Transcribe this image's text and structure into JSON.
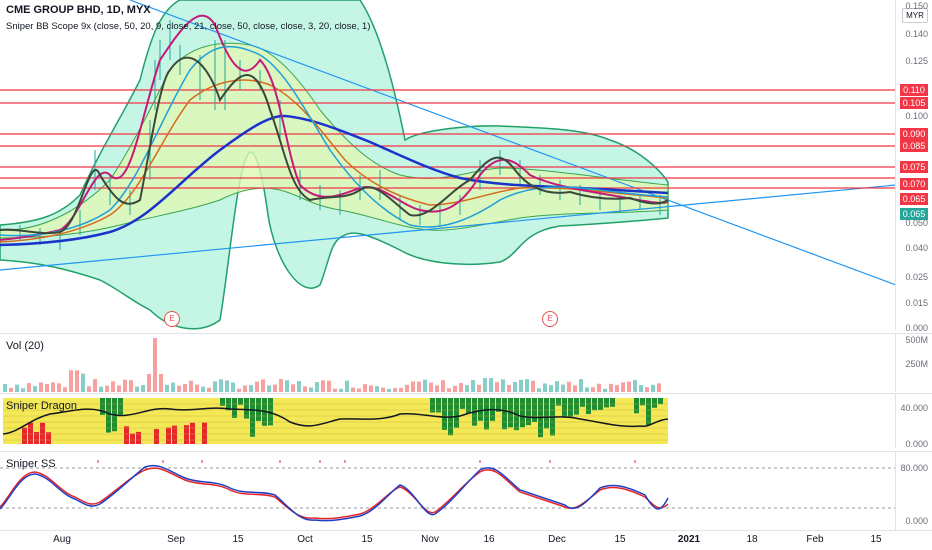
{
  "header": {
    "title": "CME GROUP BHD, 1D, MYX",
    "indicator": "Sniper BB Scope 9x (close, 50, 20, 9, close, 21, close, 50, close, close, 3, 20, close, 1)",
    "currency": "MYR"
  },
  "price_axis": {
    "labels": [
      "0.150",
      "0.140",
      "0.125",
      "0.100",
      "0.050",
      "0.040",
      "0.025",
      "0.015",
      "0.000"
    ]
  },
  "price_tags": [
    {
      "value": "0.110",
      "color": "#f23645"
    },
    {
      "value": "0.105",
      "color": "#f23645"
    },
    {
      "value": "0.090",
      "color": "#f23645"
    },
    {
      "value": "0.085",
      "color": "#f23645"
    },
    {
      "value": "0.075",
      "color": "#f23645"
    },
    {
      "value": "0.070",
      "color": "#f23645"
    },
    {
      "value": "0.065",
      "color": "#f23645"
    },
    {
      "value": "0.065",
      "color": "#26a69a"
    }
  ],
  "earnings_markers": [
    "E",
    "E"
  ],
  "volume_pane": {
    "title": "Vol (20)",
    "axis": [
      "500M",
      "250M"
    ]
  },
  "dragon_pane": {
    "title": "Sniper Dragon",
    "axis": [
      "40.000",
      "0.000"
    ]
  },
  "ss_pane": {
    "title": "Sniper SS",
    "axis": [
      "80.000",
      "0.000"
    ]
  },
  "time_axis": [
    "Aug",
    "Sep",
    "15",
    "Oct",
    "15",
    "Nov",
    "16",
    "Dec",
    "15",
    "2021",
    "18",
    "Feb",
    "15"
  ],
  "colors": {
    "bb_outer_fill": "#b2f2dc",
    "bb_outer": "#21a069",
    "bb_inner_fill": "#dff7b5",
    "ma_blue": "#1b33c9",
    "ma_orange": "#d46b1d",
    "ma_magenta": "#c21c7a",
    "ma_cyan": "#1e9fd8",
    "trend": "#2196f3",
    "sr_line": "#f23645",
    "vol_up": "#26a69a",
    "vol_down": "#ef5350",
    "dragon_bg": "#f5e857",
    "dragon_green": "#1e8c2f",
    "dragon_red": "#e8252b",
    "ss_blue": "#1f3ec4",
    "ss_red": "#e5262b"
  }
}
